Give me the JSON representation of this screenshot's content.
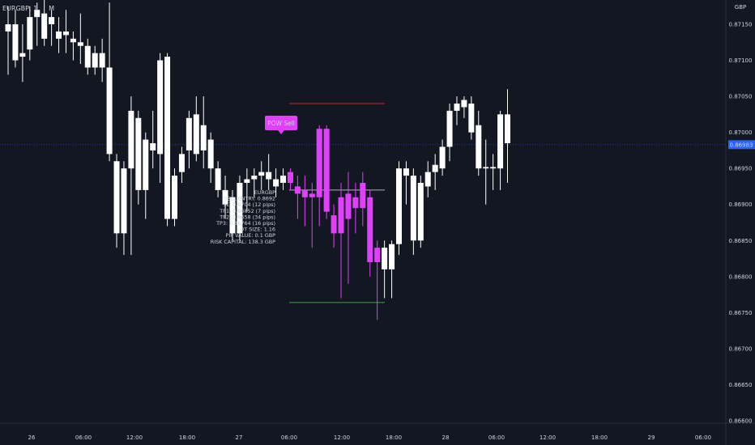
{
  "header": {
    "symbol_label": "EURGBP, 1",
    "symbol_tail": "M"
  },
  "currency_label": "GBP",
  "last_price_label": "0.86983",
  "signal_badge": "POW Sell",
  "info_lines": [
    "EURGBP",
    "SELL ENTRY: 0.8692",
    "SL: 0.8704 (12 pips)",
    "TP1: 0.86852 (7 pips)",
    "TP2: 0.8658 (34 pips)",
    "TP3: 0.86764 (16 pips)",
    "LOT SIZE: 1.16",
    "PIP VALUE: 0.1 GBP",
    "RISK CAPITAL: 138.3 GBP"
  ],
  "colors": {
    "background": "#131722",
    "bull": "#ffffff",
    "bear": "#ffffff",
    "signal": "#e040fb",
    "sl_line": "#c62828",
    "tp_line": "#43a047",
    "entry_line": "#b0b3b8",
    "last_price": "#2962ff"
  },
  "chart_data": {
    "type": "candlestick",
    "ylim": [
      0.86594,
      0.87193
    ],
    "y_ticks": [
      "0.87150",
      "0.87100",
      "0.87050",
      "0.87000",
      "0.86950",
      "0.86900",
      "0.86850",
      "0.86800",
      "0.86750",
      "0.86700",
      "0.86650",
      "0.86600"
    ],
    "x_ticks": [
      "26",
      "06:00",
      "12:00",
      "18:00",
      "27",
      "06:00",
      "12:00",
      "18:00",
      "28",
      "06:00",
      "12:00",
      "18:00",
      "29",
      "06:00"
    ],
    "last_price": 0.86983,
    "levels": {
      "sl": 0.8704,
      "entry": 0.8692,
      "tp3": 0.86764
    },
    "candles": [
      {
        "o": 0.8714,
        "h": 0.87175,
        "l": 0.8708,
        "c": 0.8715,
        "hl": false
      },
      {
        "o": 0.8715,
        "h": 0.8717,
        "l": 0.8709,
        "c": 0.871,
        "hl": false
      },
      {
        "o": 0.87105,
        "h": 0.8715,
        "l": 0.8707,
        "c": 0.8711,
        "hl": false
      },
      {
        "o": 0.87115,
        "h": 0.87175,
        "l": 0.871,
        "c": 0.8716,
        "hl": false
      },
      {
        "o": 0.8716,
        "h": 0.8718,
        "l": 0.8712,
        "c": 0.8717,
        "hl": false
      },
      {
        "o": 0.87165,
        "h": 0.87185,
        "l": 0.8712,
        "c": 0.8713,
        "hl": false
      },
      {
        "o": 0.8715,
        "h": 0.8717,
        "l": 0.8712,
        "c": 0.8716,
        "hl": false
      },
      {
        "o": 0.8714,
        "h": 0.8716,
        "l": 0.8711,
        "c": 0.8713,
        "hl": false
      },
      {
        "o": 0.87135,
        "h": 0.8717,
        "l": 0.8711,
        "c": 0.8714,
        "hl": false
      },
      {
        "o": 0.8713,
        "h": 0.8714,
        "l": 0.871,
        "c": 0.87125,
        "hl": false
      },
      {
        "o": 0.87125,
        "h": 0.87165,
        "l": 0.87095,
        "c": 0.8712,
        "hl": false
      },
      {
        "o": 0.8712,
        "h": 0.8713,
        "l": 0.8708,
        "c": 0.8709,
        "hl": false
      },
      {
        "o": 0.8709,
        "h": 0.8712,
        "l": 0.8708,
        "c": 0.8711,
        "hl": false
      },
      {
        "o": 0.8711,
        "h": 0.8713,
        "l": 0.8707,
        "c": 0.8709,
        "hl": false
      },
      {
        "o": 0.8709,
        "h": 0.8718,
        "l": 0.8696,
        "c": 0.8697,
        "hl": false
      },
      {
        "o": 0.8696,
        "h": 0.8697,
        "l": 0.8684,
        "c": 0.8686,
        "hl": false
      },
      {
        "o": 0.8686,
        "h": 0.8696,
        "l": 0.8683,
        "c": 0.8695,
        "hl": false
      },
      {
        "o": 0.8695,
        "h": 0.8705,
        "l": 0.8683,
        "c": 0.8703,
        "hl": false
      },
      {
        "o": 0.8702,
        "h": 0.8703,
        "l": 0.869,
        "c": 0.8692,
        "hl": false
      },
      {
        "o": 0.8692,
        "h": 0.87,
        "l": 0.8688,
        "c": 0.8699,
        "hl": false
      },
      {
        "o": 0.86985,
        "h": 0.8703,
        "l": 0.8695,
        "c": 0.86975,
        "hl": false
      },
      {
        "o": 0.8697,
        "h": 0.8711,
        "l": 0.8693,
        "c": 0.871,
        "hl": false
      },
      {
        "o": 0.87105,
        "h": 0.8711,
        "l": 0.8687,
        "c": 0.8688,
        "hl": false
      },
      {
        "o": 0.8688,
        "h": 0.8695,
        "l": 0.8687,
        "c": 0.8694,
        "hl": false
      },
      {
        "o": 0.86945,
        "h": 0.8698,
        "l": 0.8693,
        "c": 0.8697,
        "hl": false
      },
      {
        "o": 0.86975,
        "h": 0.8703,
        "l": 0.8695,
        "c": 0.8702,
        "hl": false
      },
      {
        "o": 0.87025,
        "h": 0.8705,
        "l": 0.8696,
        "c": 0.8697,
        "hl": false
      },
      {
        "o": 0.86975,
        "h": 0.8705,
        "l": 0.8695,
        "c": 0.8701,
        "hl": false
      },
      {
        "o": 0.8699,
        "h": 0.87,
        "l": 0.8693,
        "c": 0.8695,
        "hl": false
      },
      {
        "o": 0.8695,
        "h": 0.8696,
        "l": 0.8691,
        "c": 0.8692,
        "hl": false
      },
      {
        "o": 0.8692,
        "h": 0.8694,
        "l": 0.8688,
        "c": 0.869,
        "hl": false
      },
      {
        "o": 0.8691,
        "h": 0.8692,
        "l": 0.8685,
        "c": 0.8686,
        "hl": false
      },
      {
        "o": 0.8686,
        "h": 0.8694,
        "l": 0.8685,
        "c": 0.8693,
        "hl": false
      },
      {
        "o": 0.8693,
        "h": 0.8695,
        "l": 0.8689,
        "c": 0.86935,
        "hl": false
      },
      {
        "o": 0.86935,
        "h": 0.8695,
        "l": 0.8691,
        "c": 0.8694,
        "hl": false
      },
      {
        "o": 0.8694,
        "h": 0.8696,
        "l": 0.8692,
        "c": 0.86945,
        "hl": false
      },
      {
        "o": 0.86945,
        "h": 0.8697,
        "l": 0.8692,
        "c": 0.86935,
        "hl": false
      },
      {
        "o": 0.86935,
        "h": 0.8695,
        "l": 0.8691,
        "c": 0.86925,
        "hl": false
      },
      {
        "o": 0.8693,
        "h": 0.8695,
        "l": 0.8692,
        "c": 0.8694,
        "hl": false
      },
      {
        "o": 0.86945,
        "h": 0.8695,
        "l": 0.8692,
        "c": 0.8693,
        "hl": true
      },
      {
        "o": 0.86925,
        "h": 0.8694,
        "l": 0.8688,
        "c": 0.86915,
        "hl": true
      },
      {
        "o": 0.8692,
        "h": 0.8694,
        "l": 0.8687,
        "c": 0.8691,
        "hl": true
      },
      {
        "o": 0.8691,
        "h": 0.8693,
        "l": 0.8684,
        "c": 0.86915,
        "hl": true
      },
      {
        "o": 0.87005,
        "h": 0.8701,
        "l": 0.8687,
        "c": 0.8691,
        "hl": true
      },
      {
        "o": 0.87005,
        "h": 0.8701,
        "l": 0.8688,
        "c": 0.8689,
        "hl": true
      },
      {
        "o": 0.86885,
        "h": 0.869,
        "l": 0.8684,
        "c": 0.8686,
        "hl": true
      },
      {
        "o": 0.8691,
        "h": 0.8693,
        "l": 0.8677,
        "c": 0.8686,
        "hl": true
      },
      {
        "o": 0.86915,
        "h": 0.86945,
        "l": 0.8679,
        "c": 0.8688,
        "hl": true
      },
      {
        "o": 0.8691,
        "h": 0.8693,
        "l": 0.8686,
        "c": 0.86895,
        "hl": true
      },
      {
        "o": 0.8693,
        "h": 0.86945,
        "l": 0.8687,
        "c": 0.86895,
        "hl": true
      },
      {
        "o": 0.8691,
        "h": 0.8692,
        "l": 0.868,
        "c": 0.8682,
        "hl": true
      },
      {
        "o": 0.8684,
        "h": 0.8685,
        "l": 0.8674,
        "c": 0.8682,
        "hl": true
      },
      {
        "o": 0.8681,
        "h": 0.8685,
        "l": 0.8677,
        "c": 0.8684,
        "hl": false
      },
      {
        "o": 0.8681,
        "h": 0.8685,
        "l": 0.8677,
        "c": 0.86845,
        "hl": false
      },
      {
        "o": 0.86845,
        "h": 0.8696,
        "l": 0.8683,
        "c": 0.8695,
        "hl": false
      },
      {
        "o": 0.8695,
        "h": 0.8696,
        "l": 0.869,
        "c": 0.8694,
        "hl": false
      },
      {
        "o": 0.8694,
        "h": 0.8695,
        "l": 0.8683,
        "c": 0.8685,
        "hl": false
      },
      {
        "o": 0.8685,
        "h": 0.8694,
        "l": 0.8684,
        "c": 0.8693,
        "hl": false
      },
      {
        "o": 0.86925,
        "h": 0.8696,
        "l": 0.8691,
        "c": 0.86945,
        "hl": false
      },
      {
        "o": 0.86945,
        "h": 0.8697,
        "l": 0.8692,
        "c": 0.86955,
        "hl": false
      },
      {
        "o": 0.8695,
        "h": 0.8699,
        "l": 0.8694,
        "c": 0.8698,
        "hl": false
      },
      {
        "o": 0.8698,
        "h": 0.8704,
        "l": 0.8696,
        "c": 0.8703,
        "hl": false
      },
      {
        "o": 0.8703,
        "h": 0.8705,
        "l": 0.8701,
        "c": 0.8704,
        "hl": false
      },
      {
        "o": 0.87035,
        "h": 0.8705,
        "l": 0.8702,
        "c": 0.87045,
        "hl": false
      },
      {
        "o": 0.8704,
        "h": 0.8705,
        "l": 0.8699,
        "c": 0.87,
        "hl": false
      },
      {
        "o": 0.8701,
        "h": 0.8703,
        "l": 0.8694,
        "c": 0.8695,
        "hl": false
      },
      {
        "o": 0.8695,
        "h": 0.8699,
        "l": 0.869,
        "c": 0.86952,
        "hl": false
      },
      {
        "o": 0.86952,
        "h": 0.8697,
        "l": 0.8692,
        "c": 0.8695,
        "hl": false
      },
      {
        "o": 0.8695,
        "h": 0.8703,
        "l": 0.8692,
        "c": 0.87025,
        "hl": false
      },
      {
        "o": 0.87025,
        "h": 0.8706,
        "l": 0.8693,
        "c": 0.86985,
        "hl": false
      }
    ]
  }
}
